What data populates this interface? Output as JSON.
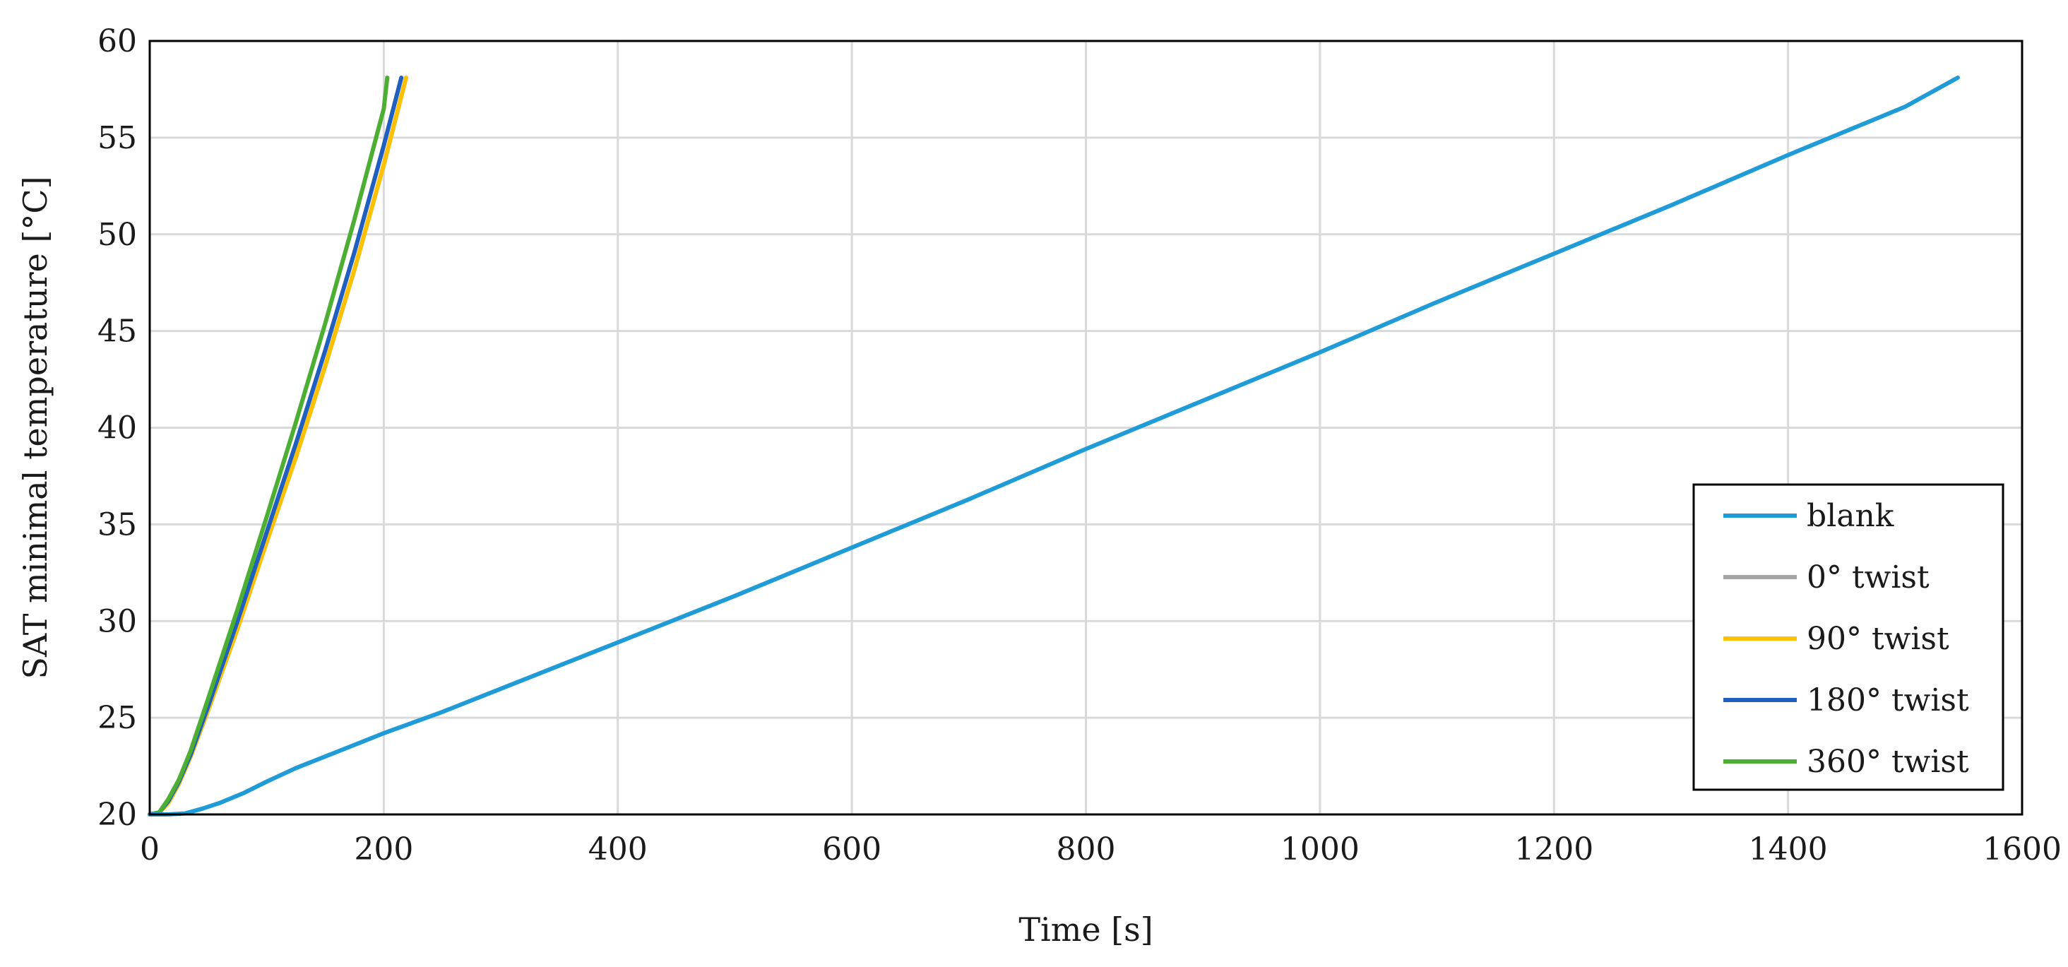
{
  "chart_data": {
    "type": "line",
    "title": "",
    "xlabel": "Time [s]",
    "ylabel": "SAT minimal temperature [°C]",
    "xlim": [
      0,
      1600
    ],
    "ylim": [
      20,
      60
    ],
    "xticks": [
      "0",
      "200",
      "400",
      "600",
      "800",
      "1000",
      "1200",
      "1400",
      "1600"
    ],
    "yticks": [
      "20",
      "25",
      "30",
      "35",
      "40",
      "45",
      "50",
      "55",
      "60"
    ],
    "grid": true,
    "legend_position": "bottom-right",
    "series": [
      {
        "name": "blank",
        "color": "#1f9bd7",
        "points": [
          [
            0,
            20
          ],
          [
            15,
            20
          ],
          [
            30,
            20.05
          ],
          [
            45,
            20.3
          ],
          [
            60,
            20.6
          ],
          [
            80,
            21.1
          ],
          [
            100,
            21.7
          ],
          [
            125,
            22.4
          ],
          [
            150,
            23
          ],
          [
            175,
            23.6
          ],
          [
            200,
            24.2
          ],
          [
            250,
            25.3
          ],
          [
            300,
            26.5
          ],
          [
            400,
            28.9
          ],
          [
            500,
            31.3
          ],
          [
            600,
            33.8
          ],
          [
            700,
            36.3
          ],
          [
            800,
            38.9
          ],
          [
            900,
            41.4
          ],
          [
            1000,
            43.9
          ],
          [
            1100,
            46.5
          ],
          [
            1200,
            49.0
          ],
          [
            1300,
            51.5
          ],
          [
            1400,
            54.1
          ],
          [
            1500,
            56.6
          ],
          [
            1545,
            58.1
          ]
        ]
      },
      {
        "name": "0° twist",
        "color": "#a5a5a5",
        "points": [
          [
            0,
            20
          ],
          [
            8,
            20.1
          ],
          [
            16,
            20.6
          ],
          [
            25,
            21.6
          ],
          [
            35,
            23.0
          ],
          [
            50,
            25.4
          ],
          [
            75,
            29.6
          ],
          [
            100,
            34.1
          ],
          [
            125,
            38.5
          ],
          [
            150,
            43.2
          ],
          [
            175,
            48.2
          ],
          [
            200,
            53.6
          ],
          [
            219,
            58.1
          ]
        ]
      },
      {
        "name": "90° twist",
        "color": "#ffc000",
        "points": [
          [
            0,
            20
          ],
          [
            8,
            20.1
          ],
          [
            16,
            20.6
          ],
          [
            25,
            21.6
          ],
          [
            35,
            23.0
          ],
          [
            50,
            25.4
          ],
          [
            75,
            29.6
          ],
          [
            100,
            34.1
          ],
          [
            125,
            38.5
          ],
          [
            150,
            43.2
          ],
          [
            175,
            48.2
          ],
          [
            200,
            53.6
          ],
          [
            219,
            58.1
          ]
        ]
      },
      {
        "name": "180° twist",
        "color": "#1f5fbf",
        "points": [
          [
            0,
            20
          ],
          [
            8,
            20.1
          ],
          [
            16,
            20.7
          ],
          [
            25,
            21.7
          ],
          [
            35,
            23.1
          ],
          [
            50,
            25.6
          ],
          [
            75,
            30.0
          ],
          [
            100,
            34.6
          ],
          [
            125,
            39.2
          ],
          [
            150,
            44.0
          ],
          [
            175,
            49.1
          ],
          [
            200,
            54.6
          ],
          [
            215,
            58.1
          ]
        ]
      },
      {
        "name": "360° twist",
        "color": "#4caf34",
        "points": [
          [
            0,
            20
          ],
          [
            8,
            20.1
          ],
          [
            16,
            20.8
          ],
          [
            25,
            21.8
          ],
          [
            35,
            23.3
          ],
          [
            50,
            26.0
          ],
          [
            75,
            30.6
          ],
          [
            100,
            35.4
          ],
          [
            125,
            40.3
          ],
          [
            150,
            45.4
          ],
          [
            175,
            50.8
          ],
          [
            200,
            56.5
          ],
          [
            203,
            58.1
          ]
        ]
      }
    ]
  }
}
